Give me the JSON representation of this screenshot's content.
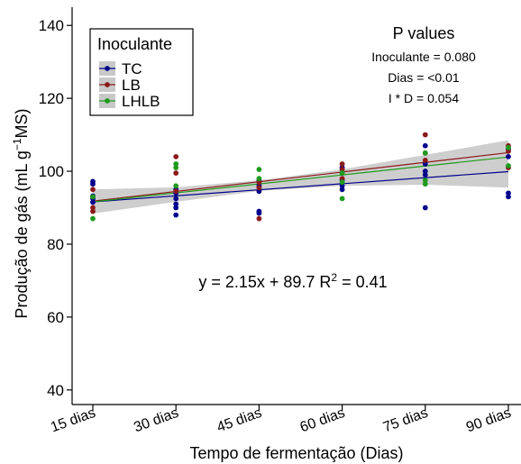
{
  "chart_data": {
    "type": "scatter",
    "xlabel": "Tempo de fermentação (Dias)",
    "ylabel_prefix": "Produção de gás (mL g",
    "ylabel_sup": "−1",
    "ylabel_suffix": "MS)",
    "categories": [
      "15 dias",
      "30 dias",
      "45 dias",
      "60 dias",
      "75 dias",
      "90 dias"
    ],
    "ylim": [
      36,
      145
    ],
    "yticks": [
      40,
      60,
      80,
      100,
      120,
      140
    ],
    "grid": false,
    "legend": {
      "title": "Inoculante",
      "placement": "top-left",
      "entries": [
        "TC",
        "LB",
        "LHLB"
      ]
    },
    "series": [
      {
        "name": "TC",
        "color": "#00008B",
        "points": [
          [
            0,
            97.2
          ],
          [
            0,
            96.5
          ],
          [
            0,
            93.2
          ],
          [
            0,
            92.5
          ],
          [
            0,
            91.5
          ],
          [
            1,
            95.0
          ],
          [
            1,
            94.0
          ],
          [
            1,
            92.5
          ],
          [
            1,
            91.0
          ],
          [
            1,
            90.0
          ],
          [
            1,
            88.0
          ],
          [
            2,
            97.5
          ],
          [
            2,
            96.0
          ],
          [
            2,
            94.5
          ],
          [
            2,
            89.0
          ],
          [
            2,
            88.5
          ],
          [
            3,
            101.0
          ],
          [
            3,
            99.5
          ],
          [
            3,
            97.5
          ],
          [
            3,
            96.0
          ],
          [
            3,
            95.0
          ],
          [
            4,
            107.0
          ],
          [
            4,
            102.0
          ],
          [
            4,
            100.0
          ],
          [
            4,
            99.0
          ],
          [
            4,
            90.0
          ],
          [
            5,
            106.0
          ],
          [
            5,
            104.0
          ],
          [
            5,
            94.0
          ],
          [
            5,
            93.0
          ]
        ],
        "fit": [
          91.6,
          99.9
        ]
      },
      {
        "name": "LB",
        "color": "#8B1A1A",
        "points": [
          [
            0,
            95.0
          ],
          [
            0,
            90.0
          ],
          [
            0,
            89.0
          ],
          [
            1,
            104.0
          ],
          [
            1,
            99.5
          ],
          [
            1,
            94.5
          ],
          [
            2,
            97.0
          ],
          [
            2,
            95.5
          ],
          [
            2,
            87.0
          ],
          [
            3,
            102.0
          ],
          [
            3,
            100.5
          ],
          [
            3,
            98.0
          ],
          [
            4,
            110.0
          ],
          [
            4,
            105.0
          ],
          [
            4,
            103.0
          ],
          [
            5,
            107.0
          ],
          [
            5,
            105.5
          ],
          [
            5,
            101.0
          ]
        ],
        "fit": [
          91.8,
          105.1
        ]
      },
      {
        "name": "LHLB",
        "color": "#1E9B1E",
        "points": [
          [
            0,
            93.0
          ],
          [
            0,
            87.0
          ],
          [
            1,
            102.0
          ],
          [
            1,
            101.0
          ],
          [
            1,
            96.0
          ],
          [
            2,
            100.5
          ],
          [
            2,
            98.0
          ],
          [
            3,
            99.5
          ],
          [
            3,
            97.0
          ],
          [
            3,
            92.5
          ],
          [
            4,
            105.0
          ],
          [
            4,
            97.5
          ],
          [
            4,
            96.5
          ],
          [
            5,
            106.5
          ],
          [
            5,
            101.5
          ]
        ],
        "fit": [
          91.6,
          103.9
        ]
      }
    ],
    "confidence_band": {
      "color": "#BEBEBE",
      "upper": [
        95.0,
        95.6,
        97.5,
        100.5,
        104.5,
        108.5
      ],
      "lower": [
        88.4,
        91.6,
        94.6,
        96.0,
        96.3,
        95.5
      ]
    },
    "annotations": {
      "equation_prefix": "y = 2.15x + 89.7  R",
      "equation_sup": "2",
      "equation_suffix": " = 0.41",
      "pvalues_title": "P values",
      "pvalues": [
        "Inoculante = 0.080",
        "Dias = <0.01",
        "I * D = 0.054"
      ]
    }
  }
}
